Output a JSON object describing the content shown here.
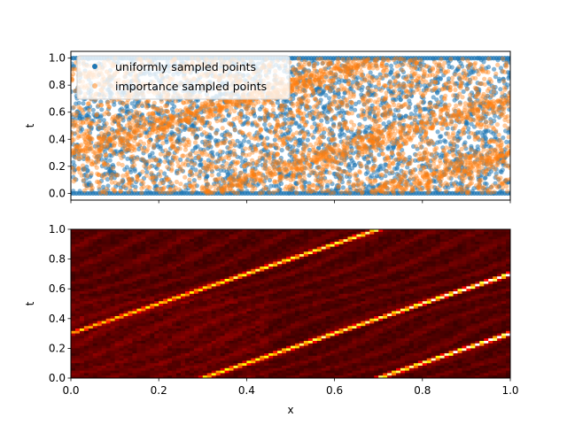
{
  "chart_data": [
    {
      "type": "scatter",
      "xlabel": "",
      "ylabel": "t",
      "xlim": [
        0.0,
        1.0
      ],
      "ylim": [
        -0.05,
        1.05
      ],
      "xticks": [
        0.0,
        0.2,
        0.4,
        0.6,
        0.8,
        1.0
      ],
      "xtick_labels_shown": false,
      "yticks": [
        "0.0",
        "0.2",
        "0.4",
        "0.6",
        "0.8",
        "1.0"
      ],
      "legend": {
        "placement": "top-left"
      },
      "series": [
        {
          "name": "uniformly sampled points",
          "color": "#1f77b4",
          "distribution": "uniform over x∈[0,1], t∈[0,1]"
        },
        {
          "name": "importance sampled points",
          "color": "#ff7f0e",
          "concentrated_along_lines": [
            {
              "x_at_t0": -0.3,
              "slope_dt_dx": 1.0
            },
            {
              "x_at_t0": 0.3,
              "slope_dt_dx": 1.0
            },
            {
              "x_at_t0": 0.7,
              "slope_dt_dx": 1.0
            }
          ]
        }
      ]
    },
    {
      "type": "heatmap",
      "xlabel": "x",
      "ylabel": "t",
      "xlim": [
        0.0,
        1.0
      ],
      "ylim": [
        0.0,
        1.0
      ],
      "xticks": [
        "0.0",
        "0.2",
        "0.4",
        "0.6",
        "0.8",
        "1.0"
      ],
      "yticks": [
        "0.0",
        "0.2",
        "0.4",
        "0.6",
        "0.8",
        "1.0"
      ],
      "colormap": "hot",
      "bright_ridges": [
        {
          "from": [
            0.0,
            0.3
          ],
          "to": [
            0.7,
            1.0
          ]
        },
        {
          "from": [
            0.3,
            0.0
          ],
          "to": [
            1.0,
            0.7
          ]
        },
        {
          "from": [
            0.7,
            0.0
          ],
          "to": [
            1.0,
            0.3
          ]
        }
      ]
    }
  ]
}
